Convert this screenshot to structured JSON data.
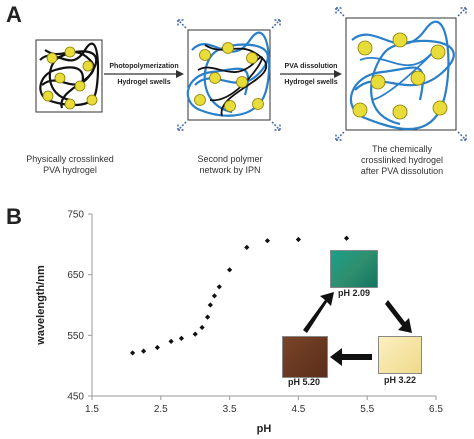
{
  "panel_a": {
    "letter": "A",
    "step1_label": "Photopolymerization",
    "step1_sub": "Hydrogel swells",
    "step2_label": "PVA dissolution",
    "step2_sub": "Hydrogel swells",
    "caption1_line1": "Physically crosslinked",
    "caption1_line2": "PVA hydrogel",
    "caption2_line1": "Second polymer",
    "caption2_line2": "network by IPN",
    "caption3_line1": "The chemically",
    "caption3_line2": "crosslinked hydrogel",
    "caption3_line3": "after PVA dissolution"
  },
  "panel_b": {
    "letter": "B",
    "inset": {
      "top_label": "pH 2.09",
      "right_label": "pH 3.22",
      "left_label": "pH 5.20",
      "colors": {
        "top": "#1f8f7a",
        "right": "#f2e2a0",
        "left": "#6b3a22"
      }
    }
  },
  "chart_data": {
    "type": "scatter",
    "xlabel": "pH",
    "ylabel": "wavelength/nm",
    "xlim": [
      1.5,
      6.5
    ],
    "ylim": [
      450,
      750
    ],
    "xticks": [
      "1.5",
      "2.5",
      "3.5",
      "4.5",
      "5.5",
      "6.5"
    ],
    "yticks": [
      "450",
      "550",
      "650",
      "750"
    ],
    "series": [
      {
        "x": [
          2.09,
          2.25,
          2.45,
          2.65,
          2.8,
          3.0,
          3.1,
          3.18,
          3.22,
          3.28,
          3.35,
          3.5,
          3.75,
          4.05,
          4.5,
          5.2
        ],
        "y": [
          521,
          524,
          530,
          540,
          545,
          552,
          563,
          580,
          600,
          615,
          630,
          658,
          695,
          706,
          708,
          710
        ]
      }
    ]
  }
}
